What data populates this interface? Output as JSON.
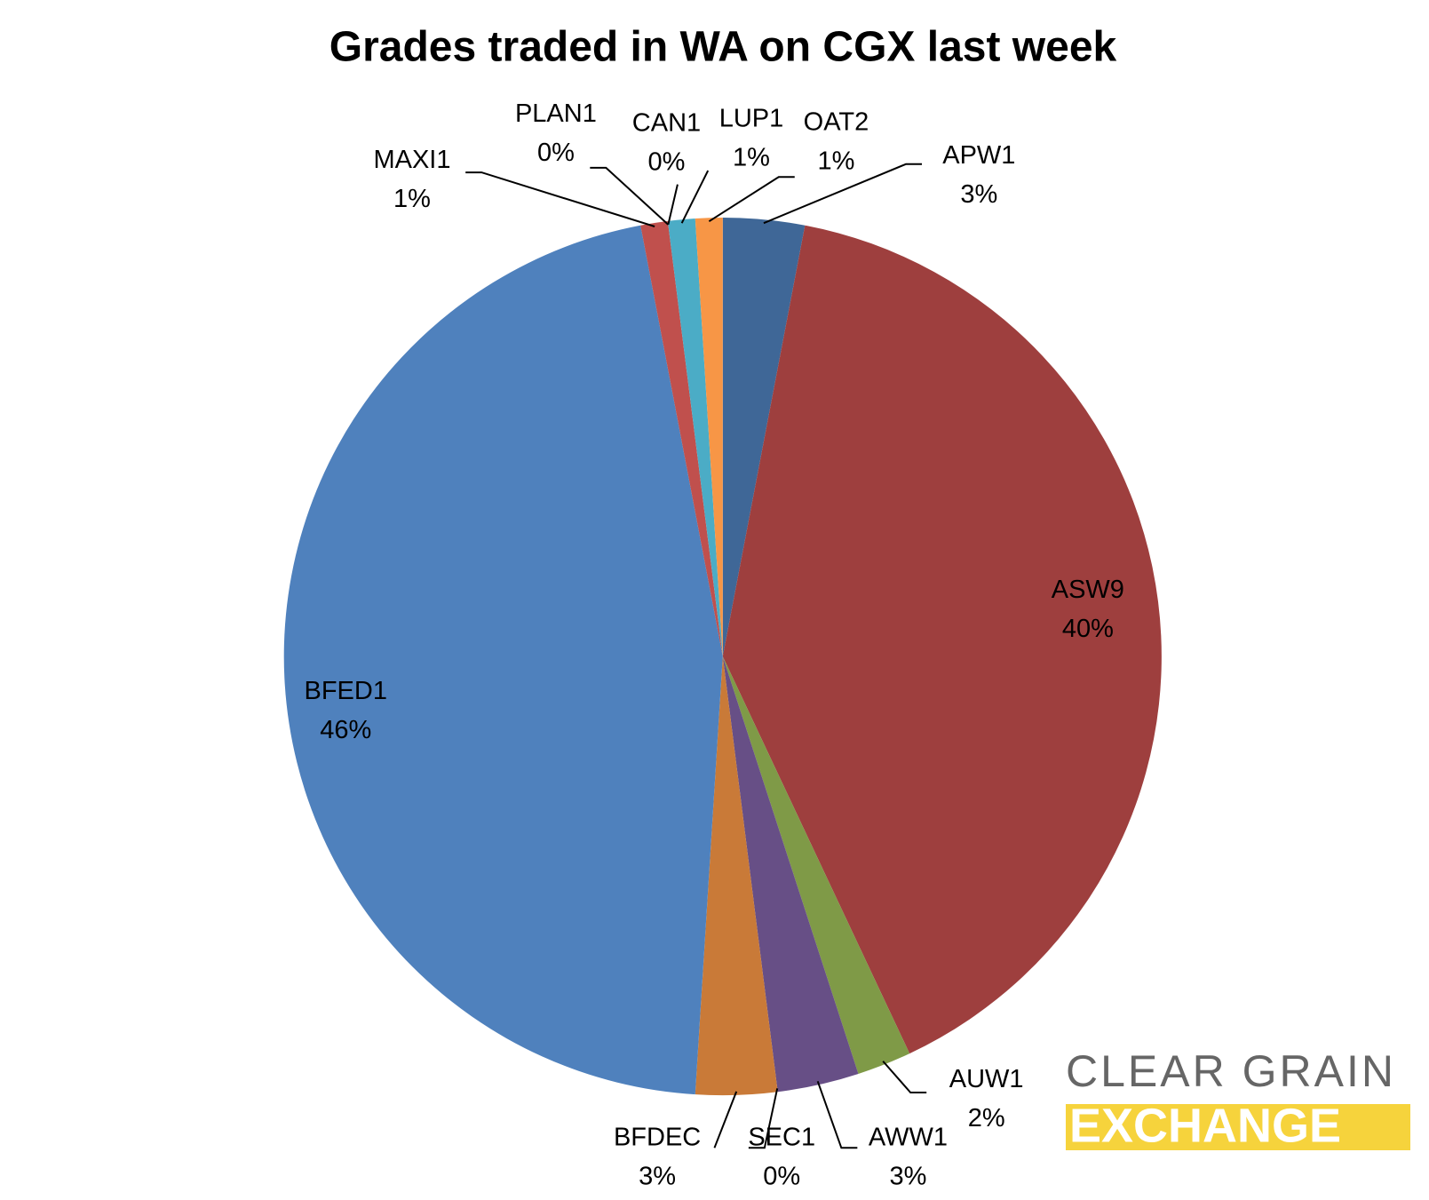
{
  "chart_data": {
    "type": "pie",
    "title": "Grades traded in WA on CGX last week",
    "categories": [
      "APW1",
      "ASW9",
      "AUW1",
      "AWW1",
      "SEC1",
      "BFDEC",
      "BFED1",
      "MAXI1",
      "PLAN1",
      "CAN1",
      "LUP1",
      "OAT2"
    ],
    "values": [
      3,
      40,
      2,
      3,
      0,
      3,
      46,
      1,
      0,
      0,
      1,
      1
    ],
    "value_labels": [
      "3%",
      "40%",
      "2%",
      "3%",
      "0%",
      "3%",
      "46%",
      "1%",
      "0%",
      "0%",
      "1%",
      "1%"
    ],
    "colors": [
      "#3f6797",
      "#9e3f3e",
      "#7f9a47",
      "#674f86",
      "#3c94a8",
      "#c97a38",
      "#4f81bd",
      "#c0504d",
      "#9bbb59",
      "#8064a2",
      "#4bacc6",
      "#f79646"
    ]
  },
  "logo": {
    "line1": "CLEAR GRAIN",
    "line2": "EXCHANGE"
  }
}
